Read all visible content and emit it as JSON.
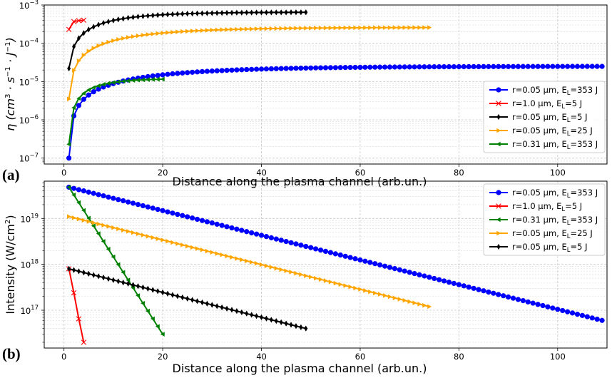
{
  "chart_data": [
    {
      "panel_label": "(a)",
      "type": "line",
      "xlabel": "Distance along the plasma channel (arb.un.)",
      "ylabel_parts": [
        "η (cm",
        "3",
        " · s",
        "−1",
        " · J",
        "−1",
        ")"
      ],
      "yscale": "log",
      "xlim": [
        -4,
        110
      ],
      "ylim": [
        7e-08,
        0.001
      ],
      "x_ticks": [
        0,
        20,
        40,
        60,
        80,
        100
      ],
      "x_tick_labels": [
        "0",
        "20",
        "40",
        "60",
        "80",
        "100"
      ],
      "y_ticks": [
        1e-07,
        1e-06,
        1e-05,
        0.0001,
        0.001
      ],
      "y_tick_base": [
        "10",
        "10",
        "10",
        "10",
        "10"
      ],
      "y_tick_exp": [
        "−7",
        "−6",
        "−5",
        "−4",
        "−3"
      ],
      "grid": true,
      "legend_location": "lower right",
      "series": [
        {
          "name_prefix": "r=0.05 µm, ",
          "name_sub": "L",
          "name_suffix": "=353 J",
          "color": "#0000ff",
          "marker": "circle",
          "curve": {
            "x_start": 1,
            "x_end": 109,
            "step": 1,
            "a": 1e-07,
            "b": 2.5e-05,
            "k": 0.048
          }
        },
        {
          "name_prefix": "r=1.0 µm, ",
          "name_sub": "L",
          "name_suffix": "=5 J",
          "color": "#ff0000",
          "marker": "x",
          "x": [
            1,
            2,
            3,
            4
          ],
          "y": [
            0.00023,
            0.00037,
            0.00039,
            0.0004
          ]
        },
        {
          "name_prefix": "r=0.05 µm, ",
          "name_sub": "L",
          "name_suffix": "=5 J",
          "color": "#000000",
          "marker": "diamond",
          "curve": {
            "x_start": 1,
            "x_end": 49,
            "step": 1,
            "a": 2.2e-05,
            "b": 0.00065,
            "k": 0.1
          }
        },
        {
          "name_prefix": "r=0.05 µm, ",
          "name_sub": "L",
          "name_suffix": "=25 J",
          "color": "#ffa500",
          "marker": "triangle-right",
          "curve": {
            "x_start": 1,
            "x_end": 74,
            "step": 1,
            "a": 3.5e-06,
            "b": 0.00026,
            "k": 0.065
          }
        },
        {
          "name_prefix": "r=0.31 µm, ",
          "name_sub": "L",
          "name_suffix": "=353 J",
          "color": "#008000",
          "marker": "triangle-left",
          "curve": {
            "x_start": 1,
            "x_end": 20,
            "step": 1,
            "a": 2.3e-07,
            "b": 1.2e-05,
            "k": 0.17
          }
        }
      ]
    },
    {
      "panel_label": "(b)",
      "type": "line",
      "xlabel": "Distance along the plasma channel (arb.un.)",
      "ylabel_parts": [
        "Intensity (W/cm",
        "2",
        ")"
      ],
      "yscale": "log",
      "xlim": [
        -4,
        110
      ],
      "ylim": [
        1.5e+16,
        6.5e+19
      ],
      "x_ticks": [
        0,
        20,
        40,
        60,
        80,
        100
      ],
      "x_tick_labels": [
        "0",
        "20",
        "40",
        "60",
        "80",
        "100"
      ],
      "y_ticks": [
        1e+17,
        1e+18,
        1e+19
      ],
      "y_tick_base": [
        "10",
        "10",
        "10"
      ],
      "y_tick_exp": [
        "17",
        "18",
        "19"
      ],
      "grid": true,
      "legend_location": "upper right",
      "series": [
        {
          "name_prefix": "r=0.05 µm, ",
          "name_sub": "L",
          "name_suffix": "=353 J",
          "color": "#0000ff",
          "marker": "circle",
          "loglinear": {
            "x_start": 1,
            "x_end": 109,
            "step": 1,
            "y_start": 4.8e+19,
            "y_end": 6e+16
          }
        },
        {
          "name_prefix": "r=1.0 µm, ",
          "name_sub": "L",
          "name_suffix": "=5 J",
          "color": "#ff0000",
          "marker": "x",
          "x": [
            1,
            2,
            3,
            4
          ],
          "y": [
            8e+17,
            2.4e+17,
            6.5e+16,
            2e+16
          ]
        },
        {
          "name_prefix": "r=0.31 µm, ",
          "name_sub": "L",
          "name_suffix": "=353 J",
          "color": "#008000",
          "marker": "triangle-left",
          "loglinear": {
            "x_start": 1,
            "x_end": 20,
            "step": 1,
            "y_start": 4.8e+19,
            "y_end": 3e+16
          }
        },
        {
          "name_prefix": "r=0.05 µm, ",
          "name_sub": "L",
          "name_suffix": "=25 J",
          "color": "#ffa500",
          "marker": "triangle-right",
          "loglinear": {
            "x_start": 1,
            "x_end": 74,
            "step": 1,
            "y_start": 1.1e+19,
            "y_end": 1.2e+17
          }
        },
        {
          "name_prefix": "r=0.05 µm, ",
          "name_sub": "L",
          "name_suffix": "=5 J",
          "color": "#000000",
          "marker": "diamond",
          "loglinear": {
            "x_start": 1,
            "x_end": 49,
            "step": 1,
            "y_start": 8e+17,
            "y_end": 4e+16
          }
        }
      ]
    }
  ]
}
